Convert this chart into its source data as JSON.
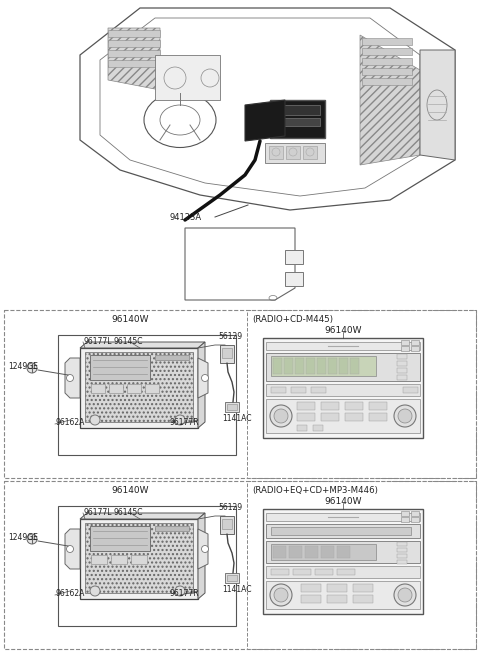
{
  "bg_color": "#ffffff",
  "line_color": "#444444",
  "fig_width": 4.8,
  "fig_height": 6.56,
  "top_label": "94123A",
  "section1_top_label": "96140W",
  "section1_subtitle": "(RADIO+CD-M445)",
  "section1_radio_label": "96140W",
  "section2_top_label": "96140W",
  "section2_subtitle": "(RADIO+EQ+CD+MP3-M446)",
  "section2_radio_label": "96140W",
  "label_96177L": "96177L",
  "label_96145C": "96145C",
  "label_96162A": "96162A",
  "label_96177R": "96177R",
  "label_1249GE": "1249GE",
  "label_56129": "56129",
  "label_1141AC": "1141AC"
}
